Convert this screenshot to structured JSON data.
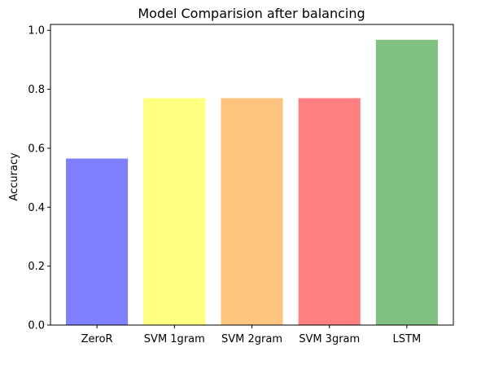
{
  "chart_data": {
    "type": "bar",
    "title": "Model Comparision after balancing",
    "xlabel": "",
    "ylabel": "Accuracy",
    "categories": [
      "ZeroR",
      "SVM 1gram",
      "SVM 2gram",
      "SVM 3gram",
      "LSTM"
    ],
    "values": [
      0.565,
      0.77,
      0.77,
      0.77,
      0.968
    ],
    "colors": [
      "#8080ff",
      "#ffff80",
      "#ffc580",
      "#ff8080",
      "#80c080"
    ],
    "ylim": [
      0,
      1.02
    ],
    "yticks": [
      0.0,
      0.2,
      0.4,
      0.6,
      0.8,
      1.0
    ],
    "ytick_labels": [
      "0.0",
      "0.2",
      "0.4",
      "0.6",
      "0.8",
      "1.0"
    ],
    "grid": false,
    "legend": "none"
  }
}
